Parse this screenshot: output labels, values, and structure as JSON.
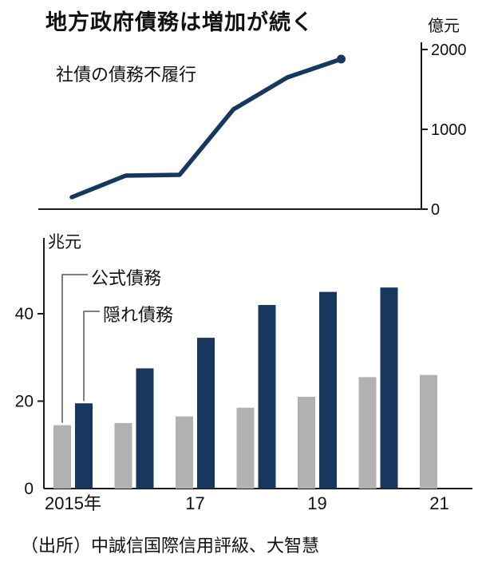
{
  "title": "地方政府債務は増加が続く",
  "source": "（出所）中誠信国際信用評級、大智慧",
  "colors": {
    "navy": "#17375e",
    "gray": "#b1b1b4",
    "axis": "#1a1a1a",
    "connector": "#555555"
  },
  "chart_data": [
    {
      "type": "line",
      "title": "社債の債務不履行",
      "unit_label": "億元",
      "x": [
        "2015",
        "2016",
        "2017",
        "2018",
        "2019",
        "2020"
      ],
      "values": [
        150,
        420,
        430,
        1250,
        1650,
        1880
      ],
      "ylim": [
        0,
        2000
      ],
      "yticks": [
        0,
        1000,
        2000
      ],
      "axis_side": "right",
      "end_dot": true
    },
    {
      "type": "bar",
      "unit_label": "兆元",
      "categories": [
        "2015",
        "2016",
        "2017",
        "2018",
        "2019",
        "2020",
        "2021"
      ],
      "x_tick_labels": [
        {
          "index": 0,
          "label": "2015年"
        },
        {
          "index": 2,
          "label": "17"
        },
        {
          "index": 4,
          "label": "19"
        },
        {
          "index": 6,
          "label": "21"
        }
      ],
      "series": [
        {
          "name": "公式債務",
          "color_key": "gray",
          "values": [
            14.5,
            15,
            16.5,
            18.5,
            21,
            25.5,
            26
          ]
        },
        {
          "name": "隠れ債務",
          "color_key": "navy",
          "values": [
            19.5,
            27.5,
            34.5,
            42,
            45,
            46,
            null
          ]
        }
      ],
      "ylim": [
        0,
        50
      ],
      "yticks": [
        0,
        20,
        40
      ],
      "legend_position": "top-left"
    }
  ]
}
